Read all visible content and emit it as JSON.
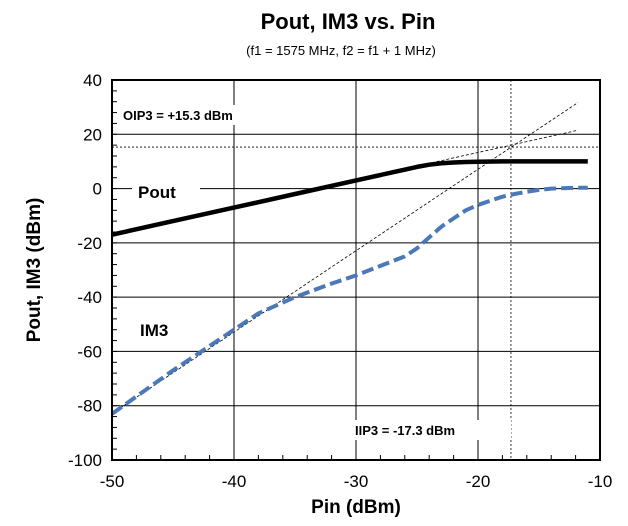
{
  "chart_data": {
    "type": "line",
    "title": "Pout, IM3 vs. Pin",
    "subtitle": "(f1 = 1575 MHz, f2 = f1 + 1 MHz)",
    "xlabel": "Pin (dBm)",
    "ylabel": "Pout, IM3 (dBm)",
    "xlim": [
      -50,
      -10
    ],
    "ylim": [
      -100,
      40
    ],
    "xticks": [
      -50,
      -40,
      -30,
      -20,
      -10
    ],
    "yticks": [
      40,
      20,
      0,
      -20,
      -40,
      -60,
      -80,
      -100
    ],
    "x_tick_labels": [
      "-50",
      "-40",
      "-30",
      "-20",
      "-10"
    ],
    "y_tick_labels": [
      "40",
      "20",
      "0",
      "-20",
      "-40",
      "-60",
      "-80",
      "-100"
    ],
    "grid": true,
    "series": [
      {
        "name": "Pout",
        "color": "#000000",
        "style": "solid",
        "x": [
          -50,
          -45,
          -40,
          -35,
          -30,
          -27,
          -25,
          -24,
          -23,
          -22,
          -21,
          -20,
          -18,
          -15,
          -11
        ],
        "y": [
          -17,
          -12,
          -7,
          -2,
          3,
          6,
          8,
          8.8,
          9.3,
          9.6,
          9.8,
          9.9,
          10,
          10,
          10
        ]
      },
      {
        "name": "IM3",
        "color": "#4a78b8",
        "style": "dashed",
        "x": [
          -50,
          -45,
          -42,
          -40,
          -38,
          -35,
          -32,
          -30,
          -28,
          -26,
          -25,
          -24,
          -23,
          -22,
          -21,
          -20,
          -19,
          -18,
          -17,
          -16,
          -15,
          -14,
          -12,
          -11
        ],
        "y": [
          -83,
          -67,
          -58,
          -52,
          -46,
          -40,
          -35,
          -32,
          -28.5,
          -25,
          -22,
          -18,
          -14,
          -11,
          -8,
          -6,
          -4.5,
          -3,
          -2,
          -1.2,
          -0.5,
          0,
          0.3,
          0.3
        ]
      }
    ],
    "reference_lines": [
      {
        "kind": "line",
        "style": "thin-dashed",
        "x": [
          -50,
          -11.8
        ],
        "y": [
          -82.9,
          31.7
        ]
      },
      {
        "kind": "line",
        "style": "thin-dashed",
        "x": [
          -35,
          -11.8
        ],
        "y": [
          -1.7,
          21.5
        ]
      },
      {
        "kind": "hline",
        "style": "dotted",
        "y": 15.3
      },
      {
        "kind": "vline",
        "style": "dotted",
        "x": -17.3
      }
    ],
    "annotations": {
      "oip3": "OIP3 = +15.3 dBm",
      "iip3": "IIP3 = -17.3 dBm",
      "pout": "Pout",
      "im3": "IM3"
    }
  }
}
